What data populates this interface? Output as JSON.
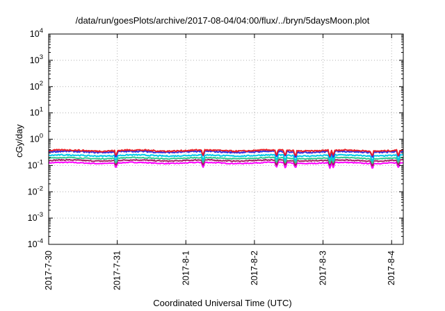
{
  "chart_data": {
    "type": "line",
    "title": "/data/run/goesPlots/archive/2017-08-04/04:00/flux/../bryn/5daysMoon.plot",
    "xlabel": "Coordinated Universal Time (UTC)",
    "ylabel": "cGy/day",
    "yscale": "log",
    "ylim": [
      0.0001,
      10000
    ],
    "y_ticks": [
      {
        "base": "10",
        "exp": "4"
      },
      {
        "base": "10",
        "exp": "3"
      },
      {
        "base": "10",
        "exp": "2"
      },
      {
        "base": "10",
        "exp": "1"
      },
      {
        "base": "10",
        "exp": "0"
      },
      {
        "base": "10",
        "exp": "-1"
      },
      {
        "base": "10",
        "exp": "-2"
      },
      {
        "base": "10",
        "exp": "-3"
      },
      {
        "base": "10",
        "exp": "-4"
      }
    ],
    "x_ticks": [
      "2017-7-30",
      "2017-7-31",
      "2017-8-1",
      "2017-8-2",
      "2017-8-3",
      "2017-8-4"
    ],
    "xlim_days": [
      0,
      5.17
    ],
    "grid": true,
    "legend": "none",
    "series": [
      {
        "color": "#e8202a",
        "level": 0.37,
        "noise": 0.06
      },
      {
        "color": "#3030e0",
        "level": 0.33,
        "noise": 0.06
      },
      {
        "color": "#00c8e8",
        "level": 0.24,
        "noise": 0.05
      },
      {
        "color": "#30c890",
        "level": 0.19,
        "noise": 0.04
      },
      {
        "color": "#a02060",
        "level": 0.155,
        "noise": 0.04
      },
      {
        "color": "#ff00ff",
        "level": 0.125,
        "noise": 0.04
      }
    ],
    "dips_days": [
      0.98,
      2.25,
      3.32,
      3.45,
      3.6,
      4.1,
      4.15,
      4.72,
      5.1
    ]
  }
}
